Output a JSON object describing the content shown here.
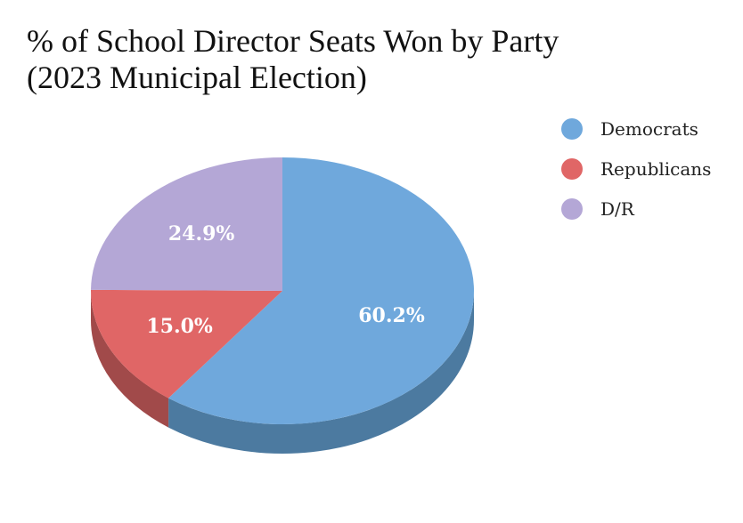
{
  "chart_data": {
    "type": "pie",
    "style": "3d",
    "title_lines": [
      "% of School Director Seats Won by Party",
      "(2023 Municipal Election)"
    ],
    "slices": [
      {
        "label": "Democrats",
        "value": 60.2,
        "display": "60.2%",
        "color": "#6fa8dc",
        "side_color": "#4c7aa0"
      },
      {
        "label": "Republicans",
        "value": 15.0,
        "display": "15.0%",
        "color": "#e06666",
        "side_color": "#a14a4a"
      },
      {
        "label": "D/R",
        "value": 24.9,
        "display": "24.9%",
        "color": "#b4a7d6",
        "side_color": "#8a7fa9"
      }
    ],
    "legend_placement": "top-right"
  }
}
